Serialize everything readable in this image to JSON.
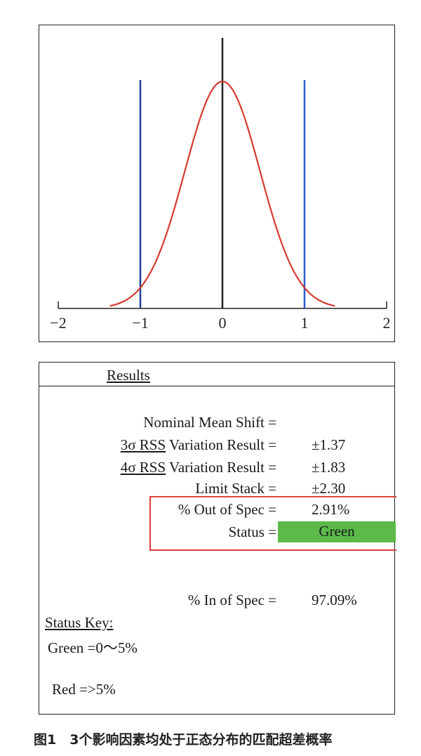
{
  "chart_data": {
    "type": "line",
    "title": "",
    "xlabel": "",
    "ylabel": "",
    "xlim": [
      -2,
      2
    ],
    "x_ticks": [
      -2,
      -1,
      0,
      1,
      2
    ],
    "x_tick_labels": [
      "−2",
      "−1",
      "0",
      "1",
      "2"
    ],
    "series": [
      {
        "type": "normal-curve",
        "mean": 0,
        "sigma": 0.457,
        "x_range": [
          -1.37,
          1.37
        ],
        "color": "#d63a2f"
      }
    ],
    "reference_lines": [
      {
        "x": -1,
        "color": "#1f3f95"
      },
      {
        "x": 0,
        "color": "#222222"
      },
      {
        "x": 1,
        "color": "#2f5bd0"
      }
    ],
    "grid": false
  },
  "results": {
    "title": "Results",
    "nominal_mean_shift_label": "Nominal Mean Shift =",
    "rss3_prefix": "3σ RSS",
    "rss3_suffix": " Variation Result =",
    "rss3_value": "±1.37",
    "rss4_prefix": "4σ RSS",
    "rss4_suffix": " Variation Result =",
    "rss4_value": "±1.83",
    "limit_stack_label": "Limit Stack =",
    "limit_stack_value": "±2.30",
    "out_of_spec_label": "% Out of Spec =",
    "out_of_spec_value": "2.91%",
    "status_label": "Status =",
    "status_value": "Green",
    "in_spec_label": "% In of Spec =",
    "in_spec_value": "97.09%"
  },
  "status_key": {
    "title": "Status Key:",
    "green": "Green  =0～5%",
    "red": "Red   =>5%"
  },
  "colors": {
    "curve": "#d63a2f",
    "status_green": "#5cb94a",
    "highlight_border": "#d9423a"
  },
  "caption": "图1　3个影响因素均处于正态分布的匹配超差概率"
}
